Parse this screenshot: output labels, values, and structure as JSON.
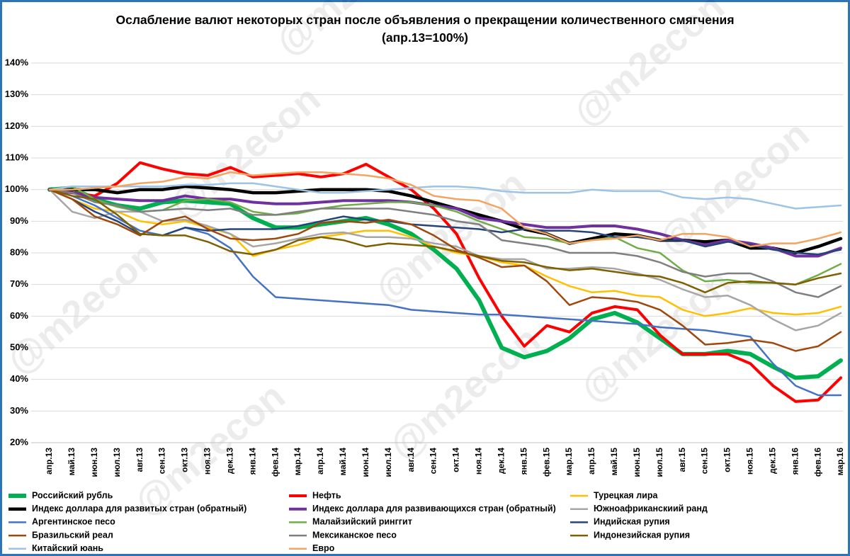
{
  "chart_data": {
    "type": "line",
    "title": "Ослабление валют некоторых стран после объявления о прекращении количественного смягчения  (апр.13=100%)",
    "watermark": "@m2econ",
    "categories": [
      "апр.13",
      "май.13",
      "июн.13",
      "июл.13",
      "авг.13",
      "сен.13",
      "окт.13",
      "ноя.13",
      "дек.13",
      "янв.14",
      "фев.14",
      "мар.14",
      "апр.14",
      "май.14",
      "июн.14",
      "июл.14",
      "авг.14",
      "сен.14",
      "окт.14",
      "ноя.14",
      "дек.14",
      "янв.15",
      "фев.15",
      "мар.15",
      "апр.15",
      "май.15",
      "июн.15",
      "июл.15",
      "авг.15",
      "сен.15",
      "окт.15",
      "ноя.15",
      "дек.15",
      "янв.16",
      "фев.16",
      "мар.16"
    ],
    "ylim": [
      20,
      140
    ],
    "yticks": [
      {
        "value": 20,
        "label": "20%"
      },
      {
        "value": 30,
        "label": "30%"
      },
      {
        "value": 40,
        "label": "40%"
      },
      {
        "value": 50,
        "label": "50%"
      },
      {
        "value": 60,
        "label": "60%"
      },
      {
        "value": 70,
        "label": "70%"
      },
      {
        "value": 80,
        "label": "80%"
      },
      {
        "value": 90,
        "label": "90%"
      },
      {
        "value": 100,
        "label": "100%"
      },
      {
        "value": 110,
        "label": "110%"
      },
      {
        "value": 120,
        "label": "120%"
      },
      {
        "value": 130,
        "label": "130%"
      },
      {
        "value": 140,
        "label": "140%"
      }
    ],
    "grid": true,
    "legend": "bottom",
    "series": [
      {
        "name": "Российский рубль",
        "color": "#00b050",
        "line_width": 6,
        "values": [
          100,
          100.5,
          97,
          95,
          94,
          96,
          96.5,
          96,
          95.5,
          91,
          88,
          88,
          89,
          90,
          91,
          89,
          86,
          81,
          75,
          65,
          50,
          47,
          49,
          53,
          59,
          61,
          58,
          53,
          48,
          48,
          49,
          48,
          44,
          40.5,
          41,
          46
        ]
      },
      {
        "name": "Нефть",
        "color": "#ff0000",
        "line_width": 4,
        "values": [
          100,
          99,
          98,
          102,
          108.5,
          106.5,
          105,
          104.5,
          107,
          104,
          104.5,
          105,
          104,
          105,
          108,
          104,
          100,
          94,
          86,
          72,
          60,
          50.5,
          57,
          55,
          61,
          63,
          62,
          54,
          48,
          48,
          48,
          45,
          38,
          33,
          33.5,
          40.5
        ]
      },
      {
        "name": "Турецкая лира",
        "color": "#ffc000",
        "line_width": 2.5,
        "values": [
          100,
          97,
          94,
          93,
          90,
          89,
          90,
          88,
          86,
          79,
          81,
          82.5,
          85,
          86,
          87,
          87,
          85,
          82,
          80,
          79,
          77,
          76,
          72.5,
          69.5,
          67.5,
          68,
          66.5,
          66,
          62,
          60,
          61,
          62.5,
          61,
          60.5,
          61,
          63
        ]
      },
      {
        "name": "Индекс доллара для развитых стран (обратный)",
        "color": "#000000",
        "line_width": 4.5,
        "values": [
          100,
          100,
          100,
          99,
          100,
          100,
          101,
          100.5,
          100,
          99,
          99,
          99.5,
          100,
          100,
          100,
          99.5,
          98,
          96,
          94,
          92,
          90,
          87.5,
          86,
          83,
          84.5,
          86,
          85.5,
          84,
          84,
          83.5,
          84,
          81.5,
          81.5,
          80,
          82,
          84.5
        ]
      },
      {
        "name": "Индекс доллара для развивающихся стран (обратный)",
        "color": "#7030a0",
        "line_width": 4,
        "values": [
          100,
          99,
          97.5,
          97,
          96.5,
          96.5,
          98,
          97,
          97,
          96,
          95.5,
          95.5,
          96,
          96.5,
          96.5,
          96.5,
          96,
          95,
          94,
          91,
          90,
          89,
          88,
          88,
          88.5,
          88.5,
          87.5,
          86,
          84,
          82.5,
          84,
          83,
          81.5,
          79,
          79,
          81.5
        ]
      },
      {
        "name": "Южноафриканскиий ранд",
        "color": "#a6a6a6",
        "line_width": 2.5,
        "values": [
          100,
          93,
          91,
          93,
          93,
          90,
          90.5,
          88.5,
          86,
          82,
          83,
          84.5,
          86,
          86.5,
          85,
          85,
          84.5,
          83,
          82,
          79,
          78,
          78,
          75,
          75,
          75.5,
          75,
          73.5,
          71.5,
          68.5,
          66,
          66.5,
          63.5,
          59,
          55.5,
          57,
          61
        ]
      },
      {
        "name": "Аргентинское песо",
        "color": "#4472c4",
        "line_width": 2.5,
        "values": [
          100,
          98,
          95,
          91,
          87,
          85.5,
          88,
          86,
          81.5,
          72.5,
          66,
          65.5,
          65,
          64.5,
          64,
          63.5,
          62,
          61.5,
          61,
          60.5,
          60.5,
          60,
          59.5,
          59,
          58.5,
          58,
          57.5,
          56.5,
          56,
          55.5,
          54.5,
          53.5,
          45,
          38,
          35,
          35
        ]
      },
      {
        "name": "Малайзийский ринггит",
        "color": "#70ad47",
        "line_width": 2.5,
        "values": [
          100,
          101,
          97,
          94.5,
          93,
          93.5,
          96.5,
          97,
          96,
          93,
          92,
          92.5,
          94,
          95,
          95.5,
          96,
          96,
          95,
          93,
          90,
          87.5,
          85,
          84.5,
          83,
          84,
          85,
          81.5,
          80,
          74.5,
          71,
          71.5,
          70.5,
          70.5,
          70,
          73,
          76.5
        ]
      },
      {
        "name": "Индийская рупия",
        "color": "#264478",
        "line_width": 2.5,
        "values": [
          100,
          97,
          93,
          90,
          86,
          85.5,
          88,
          87,
          87.5,
          87.5,
          87.5,
          88.5,
          90,
          91.5,
          90.5,
          90,
          89,
          88.5,
          88,
          87.5,
          86.5,
          87.5,
          87,
          87,
          86.5,
          85,
          85,
          84,
          84,
          82,
          83.5,
          82.5,
          81,
          80,
          79.5,
          81
        ]
      },
      {
        "name": "Бразильский реал",
        "color": "#9e480e",
        "line_width": 2.5,
        "values": [
          100,
          97,
          91.5,
          89,
          85.5,
          90,
          91.5,
          87.5,
          84.5,
          84,
          84.5,
          86,
          89.5,
          90,
          89.5,
          90.5,
          89,
          85.5,
          81,
          78.5,
          75.5,
          76,
          71,
          63.5,
          66,
          65.5,
          64.5,
          62,
          57,
          51,
          51.5,
          52.5,
          51.5,
          49,
          50.5,
          55
        ]
      },
      {
        "name": "Мексиканское песо",
        "color": "#7f7f7f",
        "line_width": 2.5,
        "values": [
          100,
          99,
          96,
          95,
          93,
          93.5,
          94,
          93.5,
          94,
          92,
          92,
          93,
          94,
          94,
          94,
          94,
          93,
          92,
          90,
          89,
          84,
          83,
          82,
          80,
          80,
          80,
          79,
          77,
          74,
          72.5,
          73.5,
          73.5,
          71,
          67.5,
          66,
          69.5
        ]
      },
      {
        "name": "Индонезийская рупия",
        "color": "#7f6000",
        "line_width": 2.5,
        "values": [
          100,
          98,
          97,
          92,
          86,
          85.5,
          85.5,
          83.5,
          80.5,
          79.5,
          81,
          84,
          85,
          84,
          82,
          83,
          82.5,
          82,
          80.5,
          79,
          77.5,
          77,
          75.5,
          74.5,
          75,
          74,
          73,
          72.5,
          70.5,
          67.5,
          70.5,
          71,
          70.5,
          70,
          72,
          73.5
        ]
      },
      {
        "name": "Китайский юань",
        "color": "#9dc3e6",
        "line_width": 2.5,
        "values": [
          100,
          101,
          101,
          101,
          101,
          101,
          101.5,
          101.5,
          102,
          102,
          101,
          100,
          99,
          99,
          99.5,
          100,
          100.5,
          101,
          101,
          100.5,
          99.5,
          99,
          99,
          99,
          100,
          99.5,
          99.5,
          99.5,
          97.5,
          97,
          97.5,
          97,
          95.5,
          94,
          94.5,
          95
        ]
      },
      {
        "name": "Евро",
        "color": "#f4a460",
        "line_width": 2.5,
        "values": [
          100,
          100,
          100.5,
          101,
          102,
          102.5,
          104,
          103.5,
          105.5,
          104.5,
          105,
          105.5,
          105.5,
          105,
          104.5,
          103.5,
          101.5,
          98,
          97,
          96.5,
          94,
          88,
          86,
          83,
          84,
          84.5,
          85.5,
          84,
          86,
          86,
          85,
          82,
          83,
          83,
          84.5,
          86.5
        ]
      }
    ]
  }
}
